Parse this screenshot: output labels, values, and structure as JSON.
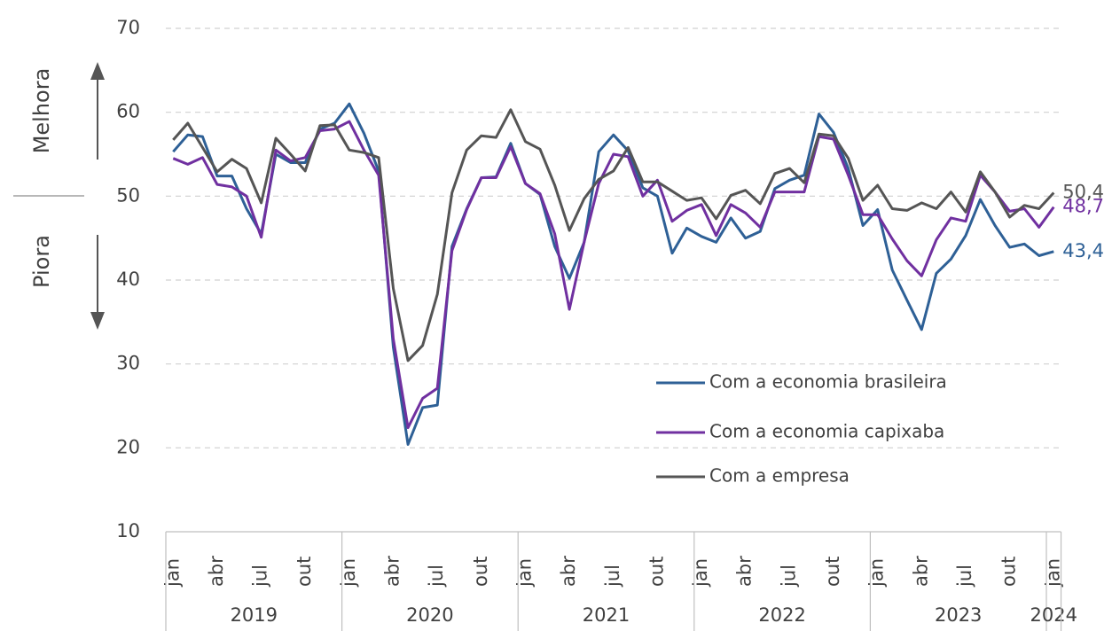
{
  "chart_data": {
    "type": "line",
    "annotations": [
      "Melhora",
      "Piora"
    ],
    "categories": [
      "jan",
      null,
      null,
      "abr",
      null,
      null,
      "jul",
      null,
      null,
      "out",
      null,
      null,
      "jan",
      null,
      null,
      "abr",
      null,
      null,
      "jul",
      null,
      null,
      "out",
      null,
      null,
      "jan",
      null,
      null,
      "abr",
      null,
      null,
      "jul",
      null,
      null,
      "out",
      null,
      null,
      "jan",
      null,
      null,
      "abr",
      null,
      null,
      "jul",
      null,
      null,
      "out",
      null,
      null,
      "jan",
      null,
      null,
      "abr",
      null,
      null,
      "jul",
      null,
      null,
      "out",
      null,
      null,
      "jan"
    ],
    "years": [
      "2019",
      "2020",
      "2021",
      "2022",
      "2023",
      "2024"
    ],
    "ylim": [
      10,
      70
    ],
    "yticks": [
      10,
      20,
      30,
      40,
      50,
      60,
      70
    ],
    "grid": true,
    "legend": "lower right",
    "series": [
      {
        "name": "Com a economia brasileira",
        "color": "#2e6096",
        "values": [
          55.3,
          57.3,
          57.1,
          52.4,
          52.4,
          48.5,
          45.5,
          55,
          54,
          54,
          58,
          58.7,
          61,
          57.5,
          53,
          32,
          20.4,
          24.8,
          25.1,
          44,
          48.5,
          52.2,
          52.3,
          56.3,
          51.5,
          50.2,
          44,
          40.2,
          44.5,
          55.3,
          57.3,
          55.4,
          51,
          50,
          43.2,
          46.2,
          45.2,
          44.5,
          47.4,
          45,
          45.8,
          50.9,
          51.9,
          52.5,
          59.8,
          57.6,
          53.3,
          46.5,
          48.4,
          41.2,
          37.6,
          34.1,
          40.8,
          42.5,
          45.3,
          49.6,
          46.5,
          43.9,
          44.3,
          42.9,
          43.4
        ],
        "value_labels": [
          null,
          null,
          null,
          null,
          null,
          null,
          null,
          null,
          null,
          null,
          null,
          null,
          null,
          null,
          null,
          null,
          null,
          null,
          null,
          null,
          null,
          null,
          null,
          null,
          null,
          null,
          null,
          null,
          null,
          null,
          null,
          null,
          null,
          null,
          null,
          null,
          null,
          null,
          null,
          null,
          null,
          null,
          null,
          null,
          null,
          null,
          null,
          null,
          null,
          null,
          null,
          null,
          null,
          null,
          null,
          null,
          null,
          null,
          null,
          null,
          "43,4"
        ]
      },
      {
        "name": "Com a economia capixaba",
        "color": "#7030a0",
        "values": [
          54.5,
          53.8,
          54.6,
          51.4,
          51.1,
          50,
          45.1,
          55.5,
          54.2,
          54.6,
          57.8,
          58,
          58.9,
          55.5,
          52.5,
          33,
          22.4,
          25.9,
          27.1,
          43.5,
          48.4,
          52.2,
          52.2,
          55.9,
          51.5,
          50.3,
          45.5,
          36.5,
          44.5,
          51.5,
          55,
          54.7,
          50,
          51.9,
          47,
          48.3,
          49,
          45.3,
          49,
          48,
          46.3,
          50.5,
          50.5,
          50.5,
          57.1,
          56.8,
          52.5,
          47.8,
          47.8,
          44.9,
          42.3,
          40.5,
          44.8,
          47.4,
          47,
          52.5,
          50.5,
          48.2,
          48.5,
          46.3,
          48.7
        ],
        "value_labels": [
          null,
          null,
          null,
          null,
          null,
          null,
          null,
          null,
          null,
          null,
          null,
          null,
          null,
          null,
          null,
          null,
          null,
          null,
          null,
          null,
          null,
          null,
          null,
          null,
          null,
          null,
          null,
          null,
          null,
          null,
          null,
          null,
          null,
          null,
          null,
          null,
          null,
          null,
          null,
          null,
          null,
          null,
          null,
          null,
          null,
          null,
          null,
          null,
          null,
          null,
          null,
          null,
          null,
          null,
          null,
          null,
          null,
          null,
          null,
          null,
          "48,7"
        ]
      },
      {
        "name": "Com a empresa",
        "color": "#555555",
        "values": [
          56.7,
          58.7,
          55.8,
          52.9,
          54.4,
          53.3,
          49.2,
          56.9,
          55,
          53,
          58.4,
          58.5,
          55.5,
          55.2,
          54.6,
          39,
          30.4,
          32.2,
          38.3,
          50.4,
          55.5,
          57.2,
          57,
          60.3,
          56.5,
          55.6,
          51.3,
          45.9,
          49.7,
          52,
          53,
          55.8,
          51.7,
          51.7,
          50.6,
          49.5,
          49.8,
          47.3,
          50.1,
          50.7,
          49.1,
          52.7,
          53.3,
          51.6,
          57.4,
          57.2,
          54.5,
          49.5,
          51.3,
          48.5,
          48.3,
          49.2,
          48.5,
          50.5,
          48.1,
          52.9,
          50.5,
          47.5,
          48.9,
          48.5,
          50.4
        ],
        "value_labels": [
          null,
          null,
          null,
          null,
          null,
          null,
          null,
          null,
          null,
          null,
          null,
          null,
          null,
          null,
          null,
          null,
          null,
          null,
          null,
          null,
          null,
          null,
          null,
          null,
          null,
          null,
          null,
          null,
          null,
          null,
          null,
          null,
          null,
          null,
          null,
          null,
          null,
          null,
          null,
          null,
          null,
          null,
          null,
          null,
          null,
          null,
          null,
          null,
          null,
          null,
          null,
          null,
          null,
          null,
          null,
          null,
          null,
          null,
          null,
          null,
          "50,4"
        ]
      }
    ]
  }
}
